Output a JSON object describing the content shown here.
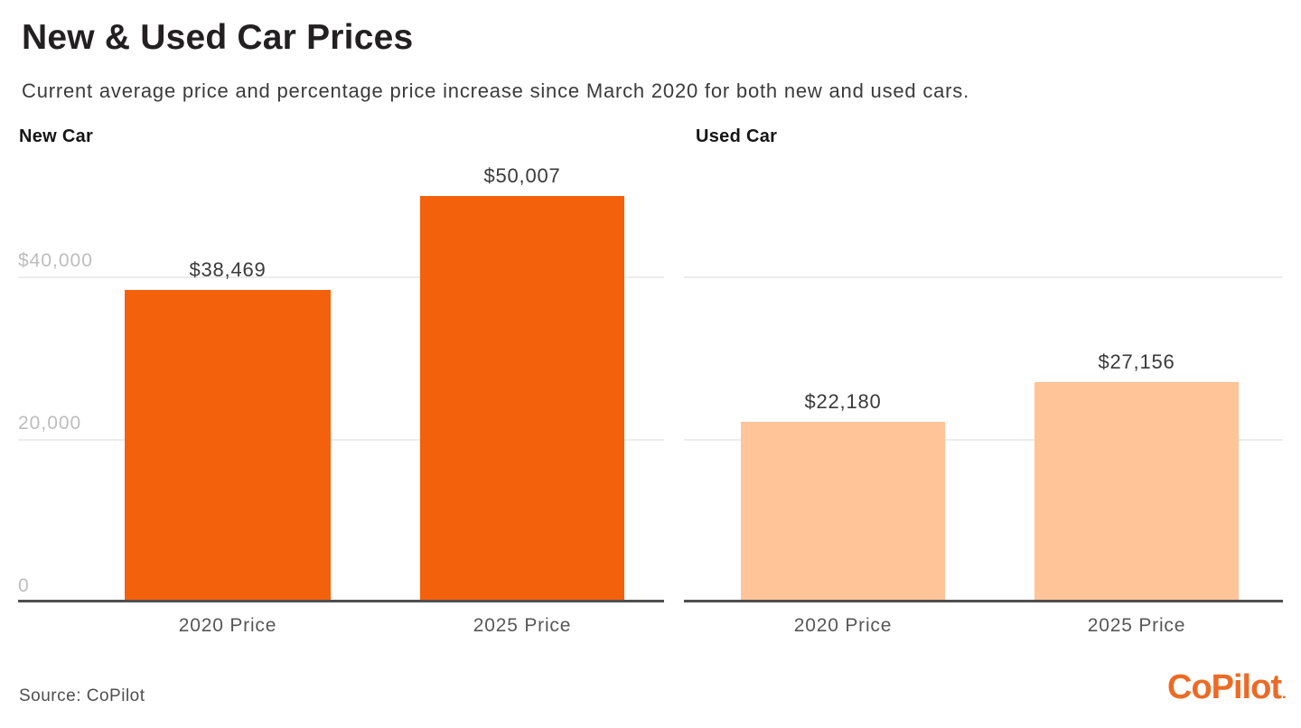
{
  "page": {
    "title": "New & Used Car Prices",
    "subtitle": "Current average price and percentage price increase since March 2020 for both new and used cars."
  },
  "chart_data": [
    {
      "type": "bar",
      "title": "New Car",
      "categories": [
        "2020 Price",
        "2025 Price"
      ],
      "values": [
        38469,
        50007
      ],
      "value_labels": [
        "$38,469",
        "$50,007"
      ],
      "yticks": [
        {
          "value": 40000,
          "label": "$40,000"
        },
        {
          "value": 20000,
          "label": "20,000"
        },
        {
          "value": 0,
          "label": "0"
        }
      ],
      "ylim": [
        0,
        55000
      ],
      "grid": true,
      "legend_position": "none",
      "bar_color": "#F4610C"
    },
    {
      "type": "bar",
      "title": "Used Car",
      "categories": [
        "2020 Price",
        "2025 Price"
      ],
      "values": [
        22180,
        27156
      ],
      "value_labels": [
        "$22,180",
        "$27,156"
      ],
      "yticks": [
        {
          "value": 40000,
          "label": ""
        },
        {
          "value": 20000,
          "label": ""
        },
        {
          "value": 0,
          "label": ""
        }
      ],
      "ylim": [
        0,
        55000
      ],
      "grid": true,
      "legend_position": "none",
      "bar_color": "#FFC498"
    }
  ],
  "footer": {
    "source": "Source: CoPilot",
    "logo_text": "CoPilot",
    "logo_dot": "."
  },
  "colors": {
    "new_bar": "#F4610C",
    "used_bar": "#FFC498",
    "logo_orange": "#EB6B26",
    "axis": "#4F4F4F",
    "gridline": "#ECECEC",
    "ytick_label": "#BDBDBD",
    "title_text": "#232021"
  }
}
